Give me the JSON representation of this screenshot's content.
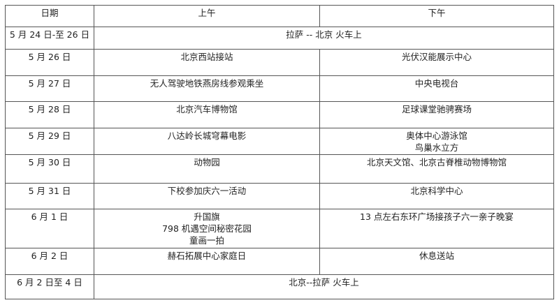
{
  "table": {
    "headers": [
      "日期",
      "上午",
      "下午"
    ],
    "rows": [
      {
        "date": "5 月 24 日-至 26 日",
        "span": "拉萨  --  北京  火车上"
      },
      {
        "date": "5 月 26 日",
        "am": [
          "北京西站接站"
        ],
        "pm": [
          "光伏汉能展示中心"
        ]
      },
      {
        "date": "5 月 27 日",
        "am": [
          "无人驾驶地铁燕房线参观乘坐"
        ],
        "pm": [
          "中央电视台"
        ]
      },
      {
        "date": "5 月 28 日",
        "am": [
          "北京汽车博物馆"
        ],
        "pm": [
          "足球课堂驰骋赛场"
        ]
      },
      {
        "date": "5 月 29 日",
        "am": [
          "八达岭长城穹幕电影"
        ],
        "pm": [
          "奥体中心游泳馆",
          "鸟巢水立方"
        ]
      },
      {
        "date": "5 月 30 日",
        "am": [
          "动物园"
        ],
        "pm": [
          "北京天文馆、北京古脊椎动物博物馆"
        ]
      },
      {
        "date": "5 月 31 日",
        "am": [
          "下校参加庆六一活动"
        ],
        "pm": [
          "北京科学中心"
        ]
      },
      {
        "date": "6 月 1 日",
        "am": [
          "升国旗",
          "798 机遇空间秘密花园",
          "童画一拍"
        ],
        "pm": [
          "13 点左右东环广场接孩子六一亲子晚宴"
        ]
      },
      {
        "date": "6 月 2 日",
        "am": [
          "赫石拓展中心家庭日"
        ],
        "pm": [
          "休息送站"
        ]
      },
      {
        "date": "6 月 2 日至 4 日",
        "span": "北京--拉萨  火车上"
      }
    ]
  }
}
